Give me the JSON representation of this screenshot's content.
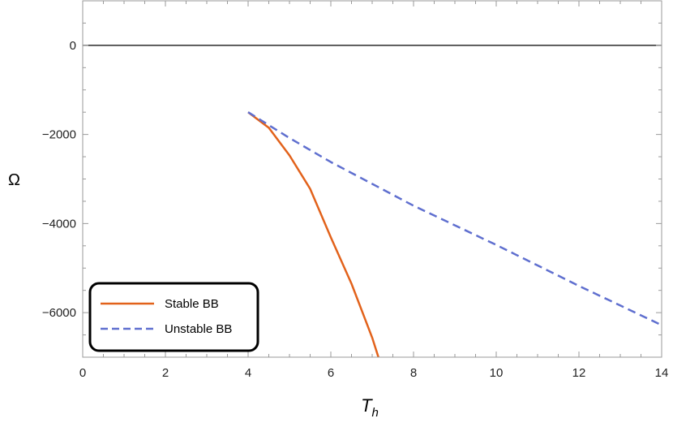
{
  "chart_data": {
    "type": "line",
    "title": "",
    "xlabel": "T",
    "xlabel_subscript": "h",
    "ylabel": "Ω",
    "xlim": [
      0,
      14
    ],
    "ylim": [
      -7000,
      1000
    ],
    "xticks": [
      0,
      2,
      4,
      6,
      8,
      10,
      12,
      14
    ],
    "yticks": [
      0,
      -2000,
      -4000,
      -6000
    ],
    "xtick_labels": [
      "0",
      "2",
      "4",
      "6",
      "8",
      "10",
      "12",
      "14"
    ],
    "ytick_labels": [
      "0",
      "−2000",
      "−4000",
      "−6000"
    ],
    "grid": false,
    "reference_line_y": 0,
    "legend_position": "bottom-left",
    "series": [
      {
        "name": "Stable BB",
        "color": "#E2621B",
        "style": "solid",
        "x": [
          4,
          4.5,
          5,
          5.5,
          6,
          6.5,
          7,
          7.15
        ],
        "y": [
          -1500,
          -1850,
          -2470,
          -3220,
          -4310,
          -5350,
          -6560,
          -7000
        ]
      },
      {
        "name": "Unstable BB",
        "color": "#5F6FCF",
        "style": "dashed",
        "x": [
          4,
          5,
          6,
          8,
          10,
          12,
          14
        ],
        "y": [
          -1500,
          -2080,
          -2620,
          -3600,
          -4480,
          -5400,
          -6280
        ]
      }
    ]
  }
}
